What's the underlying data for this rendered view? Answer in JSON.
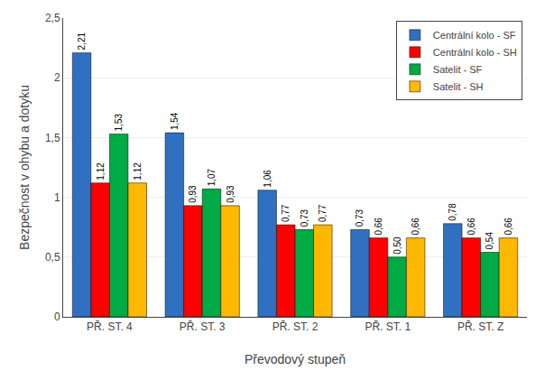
{
  "chart_data": {
    "type": "bar",
    "xlabel": "Převodový stupeň",
    "ylabel": "Bezpečnost v ohybu a dotyku",
    "categories": [
      "PŘ. ST. 4",
      "PŘ. ST. 3",
      "PŘ. ST. 2",
      "PŘ. ST. 1",
      "PŘ. ST. Z"
    ],
    "series": [
      {
        "name": "Centrální kolo - SF",
        "color": "#3070C0",
        "values": [
          2.21,
          1.54,
          1.06,
          0.73,
          0.78
        ],
        "value_labels": [
          "2,21",
          "1,54",
          "1,06",
          "0,73",
          "0,78"
        ]
      },
      {
        "name": "Centrální kolo - SH",
        "color": "#FF0000",
        "values": [
          1.12,
          0.93,
          0.77,
          0.66,
          0.66
        ],
        "value_labels": [
          "1,12",
          "0,93",
          "0,77",
          "0,66",
          "0,66"
        ]
      },
      {
        "name": "Satelit - SF",
        "color": "#00AA44",
        "values": [
          1.53,
          1.07,
          0.73,
          0.5,
          0.54
        ],
        "value_labels": [
          "1,53",
          "1,07",
          "0,73",
          "0,50",
          "0,54"
        ]
      },
      {
        "name": "Satelit - SH",
        "color": "#FFB800",
        "values": [
          1.12,
          0.93,
          0.77,
          0.66,
          0.66
        ],
        "value_labels": [
          "1,12",
          "0,93",
          "0,77",
          "0,66",
          "0,66"
        ]
      }
    ],
    "ylim": [
      0,
      2.5
    ],
    "yticks": [
      0,
      {
        "value": 0.5,
        "label": "0,5"
      },
      1,
      {
        "value": 1.5,
        "label": "1,5"
      },
      2,
      {
        "value": 2.5,
        "label": "2,5"
      }
    ],
    "grid": true,
    "legend": "upper right",
    "data_labels": true
  }
}
